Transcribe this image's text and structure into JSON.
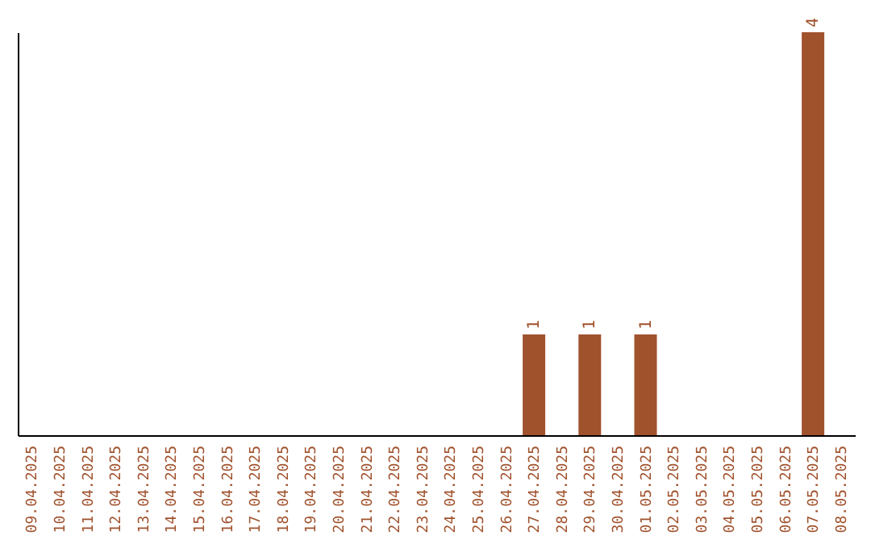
{
  "chart_data": {
    "type": "bar",
    "categories": [
      "09.04.2025",
      "10.04.2025",
      "11.04.2025",
      "12.04.2025",
      "13.04.2025",
      "14.04.2025",
      "15.04.2025",
      "16.04.2025",
      "17.04.2025",
      "18.04.2025",
      "19.04.2025",
      "20.04.2025",
      "21.04.2025",
      "22.04.2025",
      "23.04.2025",
      "24.04.2025",
      "25.04.2025",
      "26.04.2025",
      "27.04.2025",
      "28.04.2025",
      "29.04.2025",
      "30.04.2025",
      "01.05.2025",
      "02.05.2025",
      "03.05.2025",
      "04.05.2025",
      "05.05.2025",
      "06.05.2025",
      "07.05.2025",
      "08.05.2025"
    ],
    "values": [
      null,
      null,
      null,
      null,
      null,
      null,
      null,
      null,
      null,
      null,
      null,
      null,
      null,
      null,
      null,
      null,
      null,
      null,
      1,
      null,
      1,
      null,
      1,
      null,
      null,
      null,
      null,
      null,
      4,
      null
    ],
    "color": "#a0522d",
    "data_labels": true,
    "tick_labels": "x",
    "grid": false
  }
}
